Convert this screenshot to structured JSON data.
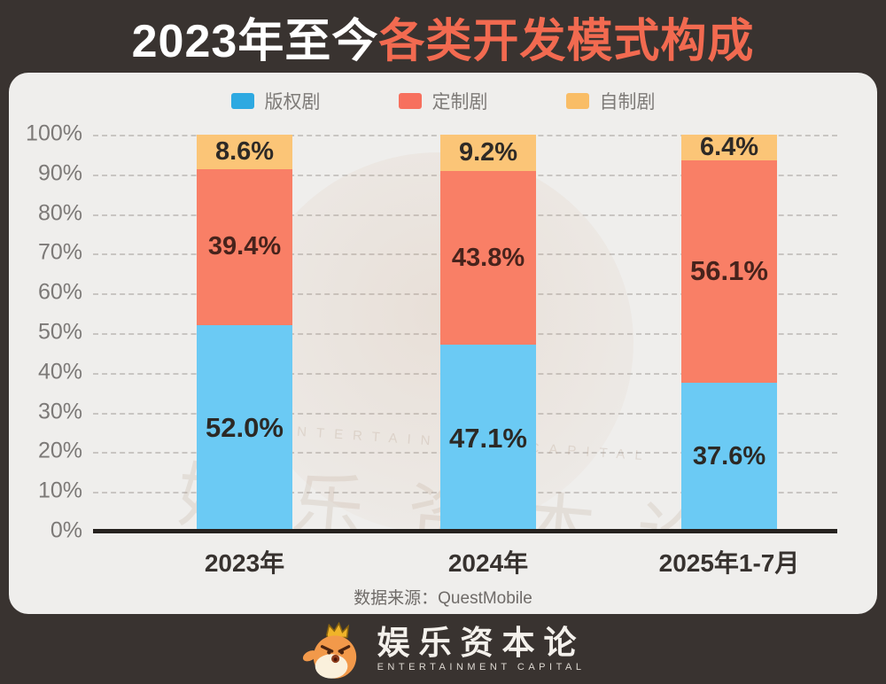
{
  "title": {
    "prefix": "2023年至今",
    "highlight": "各类开发模式构成"
  },
  "colors": {
    "background_dark": "#393330",
    "panel": "#efeeec",
    "title_highlight": "#f26a50",
    "axis_line": "#26221f",
    "gridline": "#c8c5c2",
    "tick_text": "#7c7977"
  },
  "chart_data": {
    "type": "bar",
    "stacked": true,
    "title": "2023年至今各类开发模式构成",
    "categories": [
      "2023年",
      "2024年",
      "2025年1-7月"
    ],
    "series": [
      {
        "name": "版权剧",
        "fill": "#6bcaf4",
        "legend_color": "#2ea9e1",
        "label_color": "#2c2925",
        "values": [
          52.0,
          47.1,
          37.6
        ],
        "labels": [
          "52.0%",
          "47.1%",
          "37.6%"
        ],
        "bold": [
          true,
          true,
          false
        ]
      },
      {
        "name": "定制剧",
        "fill": "#f97f66",
        "legend_color": "#f7705e",
        "label_color": "#47231c",
        "values": [
          39.4,
          43.8,
          56.1
        ],
        "labels": [
          "39.4%",
          "43.8%",
          "56.1%"
        ],
        "bold": [
          false,
          false,
          true
        ]
      },
      {
        "name": "自制剧",
        "fill": "#fbc577",
        "legend_color": "#f9bd66",
        "label_color": "#2e2a26",
        "values": [
          8.6,
          9.2,
          6.4
        ],
        "labels": [
          "8.6%",
          "9.2%",
          "6.4%"
        ],
        "bold": [
          false,
          false,
          false
        ]
      }
    ],
    "y_ticks": [
      "100%",
      "90%",
      "80%",
      "70%",
      "60%",
      "50%",
      "40%",
      "30%",
      "20%",
      "10%",
      "0%"
    ],
    "ylim": [
      0,
      100
    ],
    "grid": "horizontal-dashed",
    "legend_position": "top"
  },
  "source": "数据来源：QuestMobile",
  "watermark": {
    "cn": "娱乐资本论",
    "en": "ENTERTAINMENT CAPITAL"
  },
  "footer": {
    "logo_cn": "娱乐资本论",
    "logo_en": "ENTERTAINMENT CAPITAL"
  }
}
